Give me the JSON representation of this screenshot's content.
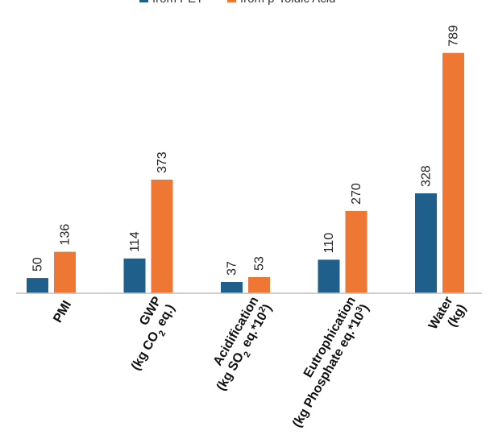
{
  "chart_data": {
    "type": "bar",
    "title": "",
    "xlabel": "",
    "ylabel": "",
    "legend_position": "top",
    "ylim": [
      0,
      820
    ],
    "categories": [
      {
        "line1": "PMI",
        "line2": "",
        "line2_sub": "",
        "line2_rest": "",
        "line2_sup": "",
        "line2_end": ""
      },
      {
        "line1": "GWP",
        "line2": "(kg CO",
        "line2_sub": "2",
        "line2_rest": " eq.)",
        "line2_sup": "",
        "line2_end": ""
      },
      {
        "line1": "Acidification",
        "line2": "(kg SO",
        "line2_sub": "2",
        "line2_rest": " eq.*10",
        "line2_sup": "2",
        "line2_end": ")"
      },
      {
        "line1": "Eutrophication",
        "line2": "(kg Phosphate eq.*10",
        "line2_sub": "",
        "line2_rest": "",
        "line2_sup": "3",
        "line2_end": ")"
      },
      {
        "line1": "Water",
        "line2": "(kg)",
        "line2_sub": "",
        "line2_rest": "",
        "line2_sup": "",
        "line2_end": ""
      }
    ],
    "series": [
      {
        "name": "from PET",
        "color": "#1f5f8b",
        "values": [
          50,
          114,
          37,
          110,
          328
        ]
      },
      {
        "name": "from p-Toluic Acid",
        "color": "#ee7733",
        "values": [
          136,
          373,
          53,
          270,
          789
        ]
      }
    ]
  }
}
